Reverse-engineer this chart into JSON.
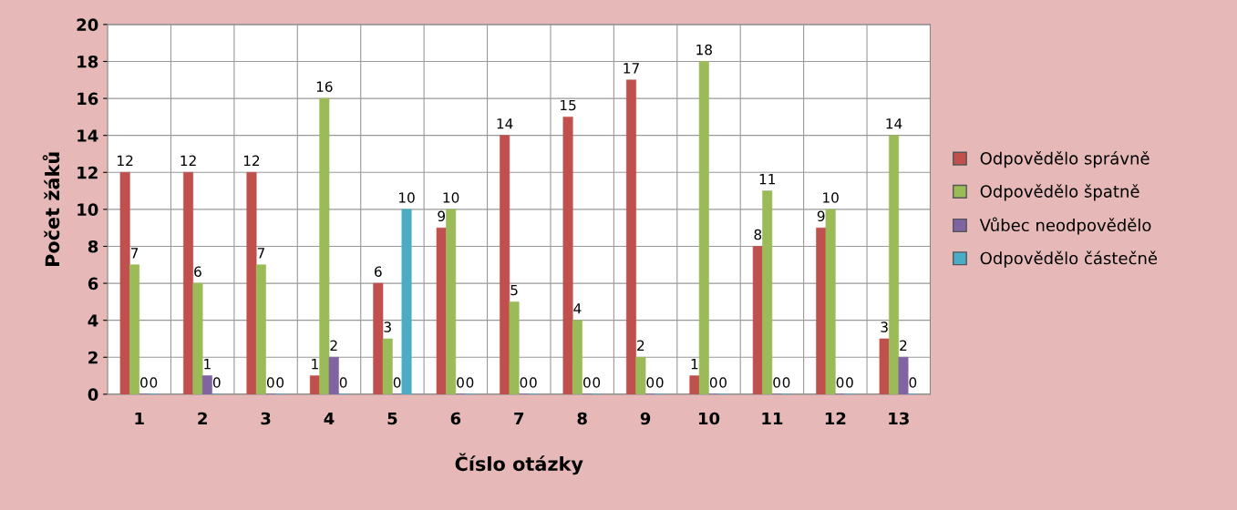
{
  "chart_data": {
    "type": "bar",
    "xlabel": "Číslo otázky",
    "ylabel": "Počet žáků",
    "categories": [
      "1",
      "2",
      "3",
      "4",
      "5",
      "6",
      "7",
      "8",
      "9",
      "10",
      "11",
      "12",
      "13"
    ],
    "series": [
      {
        "name": "Odpovědělo správně",
        "color": "#c0504d",
        "values": [
          12,
          12,
          12,
          1,
          6,
          9,
          14,
          15,
          17,
          1,
          8,
          9,
          3
        ]
      },
      {
        "name": "Odpovědělo špatně",
        "color": "#9bbb59",
        "values": [
          7,
          6,
          7,
          16,
          3,
          10,
          5,
          4,
          2,
          18,
          11,
          10,
          14
        ]
      },
      {
        "name": "Vůbec neodpovědělo",
        "color": "#8064a2",
        "values": [
          0,
          1,
          0,
          2,
          0,
          0,
          0,
          0,
          0,
          0,
          0,
          0,
          2
        ]
      },
      {
        "name": "Odpovědělo částečně",
        "color": "#4bacc6",
        "values": [
          0,
          0,
          0,
          0,
          10,
          0,
          0,
          0,
          0,
          0,
          0,
          0,
          0
        ]
      }
    ],
    "ylim": [
      0,
      20
    ],
    "yticks": [
      0,
      2,
      4,
      6,
      8,
      10,
      12,
      14,
      16,
      18,
      20
    ],
    "grid": true,
    "legend": "right",
    "data_labels": true
  }
}
